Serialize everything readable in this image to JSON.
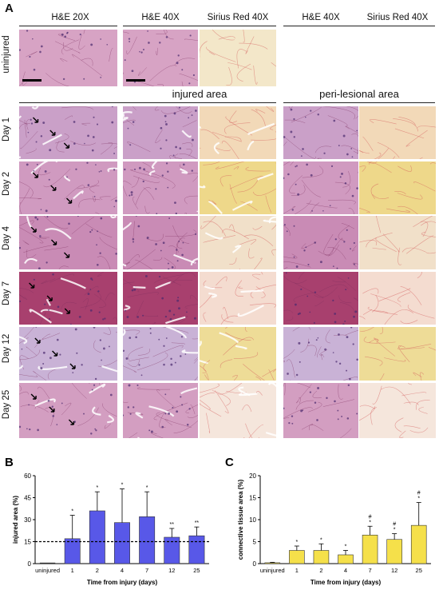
{
  "panel_a": {
    "letter": "A",
    "column_headers": [
      "H&E 20X",
      "H&E 40X",
      "Sirius Red 40X",
      "H&E 40X",
      "Sirius Red 40X"
    ],
    "section_headers": {
      "injured": "injured area",
      "peri": "peri-lesional area"
    },
    "row_labels": [
      "uninjured",
      "Day 1",
      "Day 2",
      "Day 4",
      "Day 7",
      "Day 12",
      "Day 25"
    ]
  },
  "colors": {
    "bar_b": "#5858e8",
    "bar_c": "#f5e04a",
    "he": "#d9a0c2",
    "sirius": "#f4e6c6"
  },
  "chart_data": [
    {
      "panel": "B",
      "type": "bar",
      "xlabel": "Time from injury (days)",
      "ylabel": "injured area (%)",
      "categories": [
        "uninjured",
        "1",
        "2",
        "4",
        "7",
        "12",
        "25"
      ],
      "values": [
        0,
        17,
        36,
        28,
        32,
        18,
        19
      ],
      "errors": [
        0,
        16,
        13,
        23,
        17,
        6,
        6
      ],
      "significance": [
        "",
        "*",
        "*",
        "*",
        "*",
        "**",
        "**"
      ],
      "reference_line": 15,
      "ylim": [
        0,
        60
      ],
      "yticks": [
        0,
        15,
        30,
        45,
        60
      ]
    },
    {
      "panel": "C",
      "type": "bar",
      "xlabel": "Time from injury (days)",
      "ylabel": "connective tissue area (%)",
      "categories": [
        "uninjured",
        "1",
        "2",
        "4",
        "7",
        "12",
        "25"
      ],
      "values": [
        0.2,
        3.0,
        3.0,
        2.0,
        6.5,
        5.5,
        8.7
      ],
      "errors": [
        0.1,
        1.0,
        1.5,
        1.0,
        2.0,
        1.3,
        5.2
      ],
      "significance": [
        "",
        "*",
        "*",
        "*",
        "#\n*",
        "#\n*",
        "#\n*"
      ],
      "ylim": [
        0,
        20
      ],
      "yticks": [
        0,
        5,
        10,
        15,
        20
      ]
    }
  ]
}
